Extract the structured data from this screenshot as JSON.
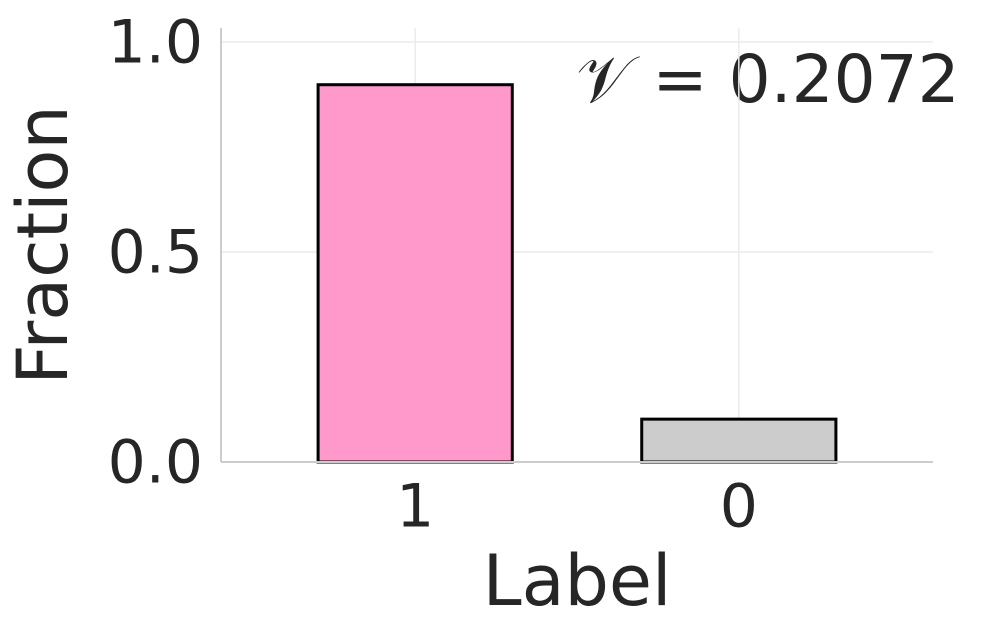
{
  "chart_data": {
    "type": "bar",
    "annotation": "𝒱 = 0.2072",
    "x_label": "Label",
    "y_label": "Fraction",
    "categories": [
      "1",
      "0"
    ],
    "values": [
      0.898,
      0.102
    ],
    "colors": [
      "#ff99cc",
      "#cccccc"
    ],
    "edgecolor": "#000000",
    "ylim": [
      0,
      1.033
    ],
    "yticks": [
      {
        "value": 0,
        "label": "0.0"
      },
      {
        "value": 0.5,
        "label": "0.5"
      },
      {
        "value": 1.0,
        "label": "1.0"
      }
    ],
    "grid": true
  }
}
